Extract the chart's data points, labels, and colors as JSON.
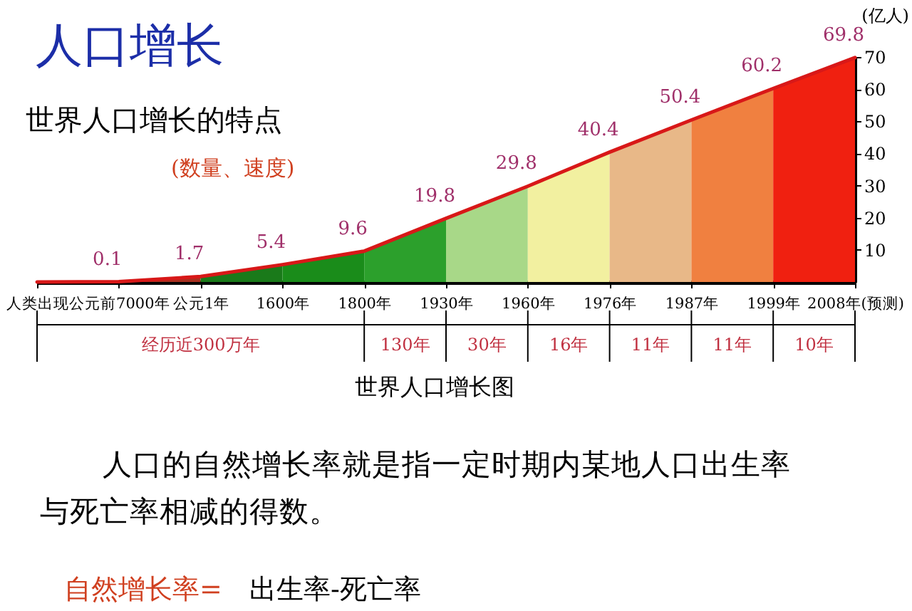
{
  "chart_data": {
    "type": "area",
    "title": "人口增长",
    "subtitle": "世界人口增长的特点",
    "ylabel": "(亿人)",
    "categories": [
      "人类出现",
      "公元前7000年",
      "公元1年",
      "1600年",
      "1800年",
      "1930年",
      "1960年",
      "1976年",
      "1987年",
      "1999年",
      "2008年(预测)"
    ],
    "series": [
      {
        "color": "#a83020",
        "values": [
          null,
          0.1,
          1.7,
          null,
          null,
          null,
          null,
          null,
          null,
          null,
          null
        ]
      },
      {
        "color": "#1a7a1a",
        "values": [
          null,
          null,
          1.7,
          5.4,
          null,
          null,
          null,
          null,
          null,
          null,
          null
        ]
      },
      {
        "color": "#1a8c1a",
        "values": [
          null,
          null,
          null,
          5.4,
          9.6,
          null,
          null,
          null,
          null,
          null,
          null
        ]
      },
      {
        "color": "#2ca02c",
        "values": [
          null,
          null,
          null,
          null,
          9.6,
          19.8,
          null,
          null,
          null,
          null,
          null
        ]
      },
      {
        "color": "#a8d888",
        "values": [
          null,
          null,
          null,
          null,
          null,
          19.8,
          29.8,
          null,
          null,
          null,
          null
        ]
      },
      {
        "color": "#f2f0a0",
        "values": [
          null,
          null,
          null,
          null,
          null,
          null,
          29.8,
          40.4,
          null,
          null,
          null
        ]
      },
      {
        "color": "#e8b888",
        "values": [
          null,
          null,
          null,
          null,
          null,
          null,
          null,
          40.4,
          50.4,
          null,
          null
        ]
      },
      {
        "color": "#f08040",
        "values": [
          null,
          null,
          null,
          null,
          null,
          null,
          null,
          null,
          50.4,
          60.2,
          null
        ]
      },
      {
        "color": "#f02010",
        "values": [
          null,
          null,
          null,
          null,
          null,
          null,
          null,
          null,
          null,
          60.2,
          69.8
        ]
      },
      {
        "type": "line",
        "color": "#d81818",
        "values": [
          0,
          0.1,
          1.7,
          5.4,
          9.6,
          19.8,
          29.8,
          40.4,
          50.4,
          60.2,
          69.8
        ],
        "value_labels": [
          null,
          "0.1",
          "1.7",
          "5.4",
          "9.6",
          "19.8",
          "29.8",
          "40.4",
          "50.4",
          "60.2",
          "69.8"
        ]
      }
    ],
    "ylim": [
      0,
      70
    ],
    "yticks": [
      10,
      20,
      30,
      40,
      50,
      60,
      70
    ],
    "grid": false,
    "annotations": [
      "经历近300万年",
      "130年",
      "30年",
      "16年",
      "11年",
      "11年",
      "10年",
      "(数量、速度)",
      "世界人口增长图",
      "人口的自然增长率就是指一定时期内某地人口出生率",
      "与死亡率相减的得数。",
      "自然增长率=",
      "出生率-死亡率"
    ]
  }
}
